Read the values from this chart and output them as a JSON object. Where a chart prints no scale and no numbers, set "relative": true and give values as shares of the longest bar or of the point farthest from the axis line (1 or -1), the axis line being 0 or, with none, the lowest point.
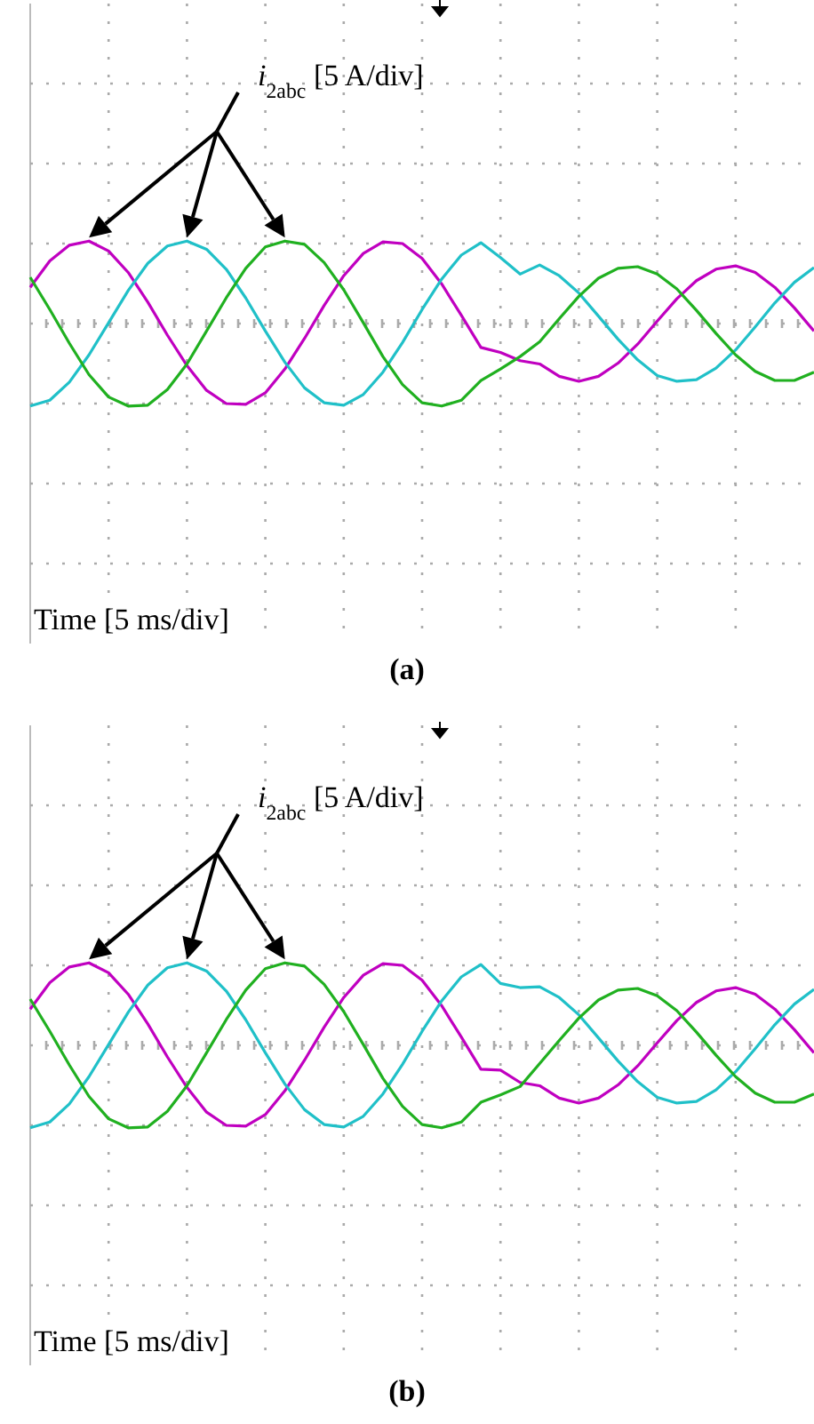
{
  "chart_data": [
    {
      "type": "line",
      "title": "(a)",
      "relative": true,
      "grid": true,
      "annotations": [
        "i$_{2abc}$ [5 A/div]",
        "Time [5 ms/div]"
      ],
      "categories": [
        null,
        null,
        null,
        null,
        null,
        null,
        null,
        null,
        null,
        null,
        null,
        null,
        null,
        null,
        null,
        null,
        null,
        null,
        null,
        null,
        null,
        null,
        null,
        null,
        null,
        null,
        null,
        null,
        null,
        null,
        null,
        null,
        null,
        null,
        null,
        null,
        null,
        null,
        null,
        null,
        null
      ],
      "series": [
        {
          "color": "#c000c0",
          "values": [
            0.44,
            0.76,
            0.95,
            1.0,
            0.88,
            0.62,
            0.26,
            -0.14,
            -0.51,
            -0.81,
            -0.97,
            -0.98,
            -0.84,
            -0.55,
            -0.18,
            0.22,
            0.58,
            0.85,
            0.99,
            0.97,
            0.79,
            0.48,
            0.1,
            -0.29,
            -0.35,
            -0.45,
            -0.49,
            -0.64,
            -0.7,
            -0.64,
            -0.48,
            -0.25,
            0.03,
            0.3,
            0.52,
            0.66,
            0.7,
            0.62,
            0.44,
            0.19,
            -0.09
          ]
        },
        {
          "color": "#20c0c8",
          "values": [
            -1.0,
            -0.93,
            -0.71,
            -0.38,
            0.01,
            0.4,
            0.73,
            0.94,
            1.0,
            0.9,
            0.66,
            0.31,
            -0.09,
            -0.47,
            -0.78,
            -0.96,
            -0.99,
            -0.86,
            -0.59,
            -0.23,
            0.17,
            0.54,
            0.83,
            0.98,
            0.8,
            0.6,
            0.71,
            0.58,
            0.37,
            0.09,
            -0.19,
            -0.44,
            -0.63,
            -0.7,
            -0.68,
            -0.54,
            -0.32,
            -0.04,
            0.25,
            0.5,
            0.68
          ]
        },
        {
          "color": "#20b020",
          "values": [
            0.56,
            0.17,
            -0.24,
            -0.62,
            -0.89,
            -1.0,
            -0.99,
            -0.8,
            -0.49,
            -0.09,
            0.31,
            0.67,
            0.93,
            1.0,
            0.96,
            0.74,
            0.41,
            0.01,
            -0.4,
            -0.74,
            -0.96,
            -1.0,
            -0.93,
            -0.69,
            -0.55,
            -0.4,
            -0.22,
            0.06,
            0.33,
            0.55,
            0.67,
            0.69,
            0.6,
            0.42,
            0.16,
            -0.12,
            -0.38,
            -0.58,
            -0.69,
            -0.69,
            -0.59
          ]
        }
      ]
    },
    {
      "type": "line",
      "title": "(b)",
      "relative": true,
      "grid": true,
      "annotations": [
        "i$_{2abc}$ [5 A/div]",
        "Time [5 ms/div]"
      ],
      "categories": [
        null,
        null,
        null,
        null,
        null,
        null,
        null,
        null,
        null,
        null,
        null,
        null,
        null,
        null,
        null,
        null,
        null,
        null,
        null,
        null,
        null,
        null,
        null,
        null,
        null,
        null,
        null,
        null,
        null,
        null,
        null,
        null,
        null,
        null,
        null,
        null,
        null,
        null,
        null,
        null,
        null
      ],
      "series": [
        {
          "color": "#c000c0",
          "values": [
            0.44,
            0.76,
            0.95,
            1.0,
            0.88,
            0.62,
            0.26,
            -0.14,
            -0.51,
            -0.81,
            -0.97,
            -0.98,
            -0.84,
            -0.55,
            -0.18,
            0.22,
            0.58,
            0.85,
            0.99,
            0.97,
            0.79,
            0.48,
            0.1,
            -0.29,
            -0.3,
            -0.45,
            -0.49,
            -0.64,
            -0.7,
            -0.64,
            -0.48,
            -0.25,
            0.03,
            0.3,
            0.52,
            0.66,
            0.7,
            0.62,
            0.44,
            0.19,
            -0.09
          ]
        },
        {
          "color": "#20c0c8",
          "values": [
            -1.0,
            -0.93,
            -0.71,
            -0.38,
            0.01,
            0.4,
            0.73,
            0.94,
            1.0,
            0.9,
            0.66,
            0.31,
            -0.09,
            -0.47,
            -0.78,
            -0.96,
            -0.99,
            -0.86,
            -0.59,
            -0.23,
            0.17,
            0.54,
            0.83,
            0.98,
            0.75,
            0.7,
            0.71,
            0.58,
            0.37,
            0.09,
            -0.19,
            -0.44,
            -0.63,
            -0.7,
            -0.68,
            -0.54,
            -0.32,
            -0.04,
            0.25,
            0.5,
            0.68
          ]
        },
        {
          "color": "#20b020",
          "values": [
            0.56,
            0.17,
            -0.24,
            -0.62,
            -0.89,
            -1.0,
            -0.99,
            -0.8,
            -0.49,
            -0.09,
            0.31,
            0.67,
            0.93,
            1.0,
            0.96,
            0.74,
            0.41,
            0.01,
            -0.4,
            -0.74,
            -0.96,
            -1.0,
            -0.93,
            -0.69,
            -0.6,
            -0.5,
            -0.22,
            0.06,
            0.33,
            0.55,
            0.67,
            0.69,
            0.6,
            0.42,
            0.16,
            -0.12,
            -0.38,
            -0.58,
            -0.69,
            -0.69,
            -0.59
          ]
        }
      ]
    }
  ]
}
